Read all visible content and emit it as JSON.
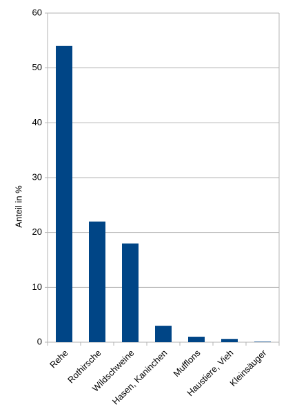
{
  "chart_data": {
    "type": "bar",
    "y_label": "Anteil in %",
    "categories": [
      "Rehe",
      "Rothirsche",
      "Wildschweine",
      "Hasen, Kaninchen",
      "Mufflons",
      "Haustiere, Vieh",
      "Kleinsäuger"
    ],
    "values": [
      54,
      22,
      18,
      3,
      1,
      0.6,
      0.1
    ],
    "color": "#004586",
    "ylim": [
      0,
      60
    ],
    "yticks": [
      0,
      10,
      20,
      30,
      40,
      50,
      60
    ],
    "grid": true
  }
}
